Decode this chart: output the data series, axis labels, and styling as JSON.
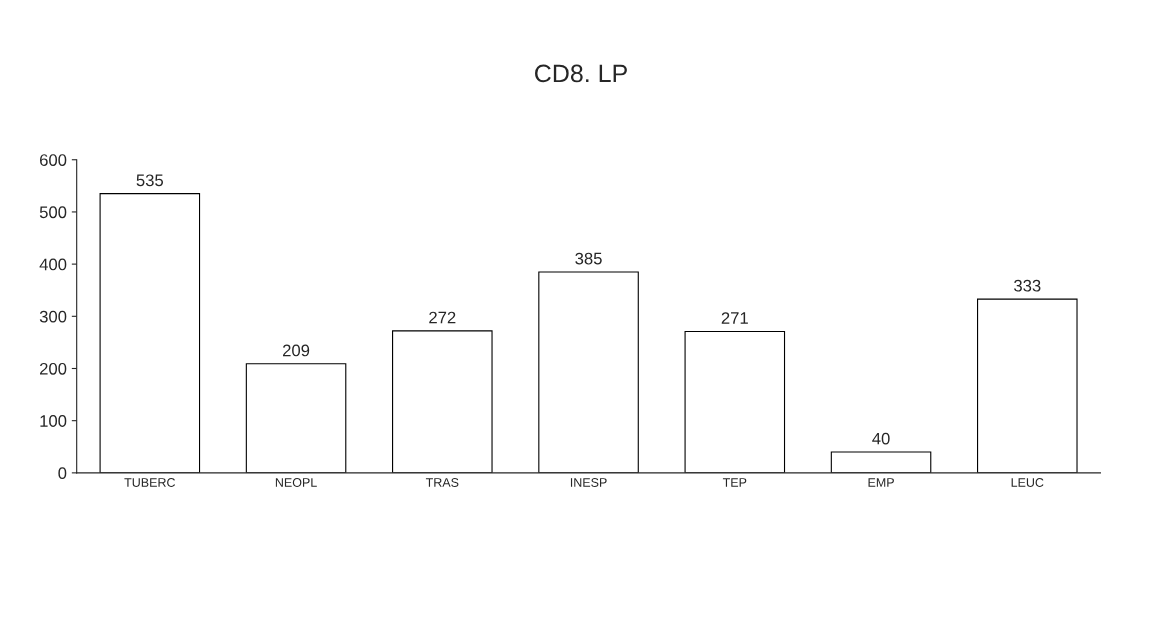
{
  "chart_data": {
    "type": "bar",
    "title": "CD8. LP",
    "categories": [
      "TUBERC",
      "NEOPL",
      "TRAS",
      "INESP",
      "TEP",
      "EMP",
      "LEUC"
    ],
    "values": [
      535,
      209,
      272,
      385,
      271,
      40,
      333
    ],
    "color": "#ffffff",
    "ylim": [
      0,
      600
    ],
    "yticks": [
      0,
      100,
      200,
      300,
      400,
      500,
      600
    ],
    "data_labels": true,
    "grid": false,
    "legend": false
  }
}
